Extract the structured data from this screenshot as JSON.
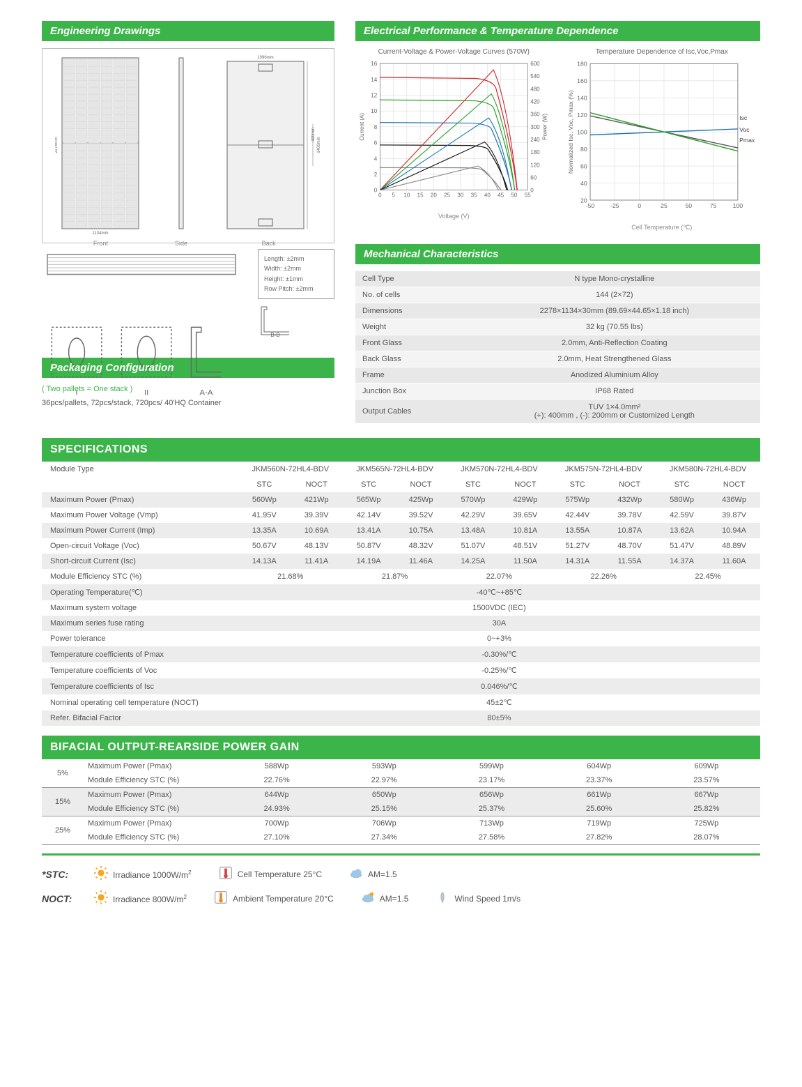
{
  "colors": {
    "brand": "#3bb54a",
    "row_alt": "#ececec",
    "text": "#555555"
  },
  "sections": {
    "engineering": "Engineering Drawings",
    "electrical": "Electrical Performance & Temperature Dependence",
    "mechanical": "Mechanical Characteristics",
    "packaging": "Packaging Configuration",
    "specs": "SPECIFICATIONS",
    "bifacial": "BIFACIAL OUTPUT-REARSIDE POWER GAIN"
  },
  "engineering_drawings": {
    "front_label": "Front",
    "side_label": "Side",
    "back_label": "Back",
    "overall_width_mm": 1134,
    "overall_height_mm": 2278,
    "back_width_mm": 1096,
    "back_inner_h_mm": 1400,
    "back_jb_offset_mm": 400,
    "section_aa": "A-A",
    "section_bb": "B-B",
    "section_I": "I",
    "section_II": "II",
    "tolerances": {
      "length": "Length: ±2mm",
      "width": "Width: ±2mm",
      "height": "Height: ±1mm",
      "row_pitch": "Row Pitch: ±2mm"
    }
  },
  "packaging": {
    "note": "( Two pallets = One stack )",
    "text": "36pcs/pallets, 72pcs/stack, 720pcs/ 40'HQ Container"
  },
  "charts": {
    "iv": {
      "title": "Current-Voltage & Power-Voltage Curves (570W)",
      "x_label": "Voltage (V)",
      "y_left_label": "Current (A)",
      "y_right_label": "Power (W)",
      "x_ticks": [
        0,
        5,
        10,
        15,
        20,
        25,
        30,
        35,
        40,
        45,
        50,
        55
      ],
      "y_left_ticks": [
        0,
        2,
        4,
        6,
        8,
        10,
        12,
        14,
        16
      ],
      "y_right_ticks": [
        0,
        60,
        120,
        180,
        240,
        300,
        360,
        420,
        480,
        540,
        600
      ],
      "xlim": [
        0,
        55
      ],
      "ylim_left": [
        0,
        16
      ],
      "ylim_right": [
        0,
        600
      ],
      "grid_color": "#cccccc",
      "axis_color": "#555555",
      "font_size_axis": 8,
      "iv_curves": [
        {
          "irradiance": 1000,
          "color": "#d62728",
          "isc": 14.25,
          "voc": 51.07
        },
        {
          "irradiance": 800,
          "color": "#2ca02c",
          "isc": 11.4,
          "voc": 50.2
        },
        {
          "irradiance": 600,
          "color": "#1f77b4",
          "isc": 8.55,
          "voc": 49.1
        },
        {
          "irradiance": 400,
          "color": "#111111",
          "isc": 5.7,
          "voc": 47.6
        },
        {
          "irradiance": 200,
          "color": "#888888",
          "isc": 2.85,
          "voc": 45.0
        }
      ],
      "pv_curves": [
        {
          "irradiance": 1000,
          "color": "#d62728",
          "pmax": 570,
          "vmp": 42.29
        },
        {
          "irradiance": 800,
          "color": "#2ca02c",
          "pmax": 456,
          "vmp": 41.5
        },
        {
          "irradiance": 600,
          "color": "#1f77b4",
          "pmax": 342,
          "vmp": 40.5
        },
        {
          "irradiance": 400,
          "color": "#111111",
          "pmax": 228,
          "vmp": 39.0
        },
        {
          "irradiance": 200,
          "color": "#888888",
          "pmax": 114,
          "vmp": 36.5
        }
      ]
    },
    "temp": {
      "title": "Temperature Dependence of Isc,Voc,Pmax",
      "x_label": "Cell Temperature (℃)",
      "y_label": "Normalized Isc, Voc, Pmax (%)",
      "x_ticks": [
        -50,
        -25,
        0,
        25,
        50,
        75,
        100
      ],
      "y_ticks": [
        20,
        40,
        60,
        80,
        100,
        120,
        140,
        160,
        180
      ],
      "xlim": [
        -50,
        100
      ],
      "ylim": [
        20,
        180
      ],
      "grid_color": "#cccccc",
      "axis_color": "#555555",
      "font_size_axis": 8,
      "series": [
        {
          "name": "Isc",
          "color": "#1f77b4",
          "p1": [
            -50,
            96.5
          ],
          "p2": [
            100,
            103.5
          ]
        },
        {
          "name": "Voc",
          "color": "#555555",
          "p1": [
            -50,
            118.8
          ],
          "p2": [
            100,
            81.3
          ]
        },
        {
          "name": "Pmax",
          "color": "#2ca02c",
          "p1": [
            -50,
            122.5
          ],
          "p2": [
            100,
            77.5
          ]
        }
      ]
    }
  },
  "mechanical": {
    "rows": [
      [
        "Cell  Type",
        "N type Mono-crystalline"
      ],
      [
        "No. of cells",
        "144 (2×72)"
      ],
      [
        "Dimensions",
        "2278×1134×30mm (89.69×44.65×1.18 inch)"
      ],
      [
        "Weight",
        "32 kg (70.55 lbs)"
      ],
      [
        "Front Glass",
        "2.0mm, Anti-Reflection Coating"
      ],
      [
        "Back Glass",
        "2.0mm, Heat Strengthened Glass"
      ],
      [
        "Frame",
        "Anodized Aluminium Alloy"
      ],
      [
        "Junction Box",
        "IP68 Rated"
      ],
      [
        "Output Cables",
        "TUV  1×4.0mm²\n(+): 400mm , (-): 200mm or Customized Length"
      ]
    ]
  },
  "specifications": {
    "module_type_label": "Module Type",
    "models": [
      "JKM560N-72HL4-BDV",
      "JKM565N-72HL4-BDV",
      "JKM570N-72HL4-BDV",
      "JKM575N-72HL4-BDV",
      "JKM580N-72HL4-BDV"
    ],
    "cond_labels": [
      "STC",
      "NOCT"
    ],
    "param_rows": [
      {
        "label": "Maximum Power (Pmax)",
        "vals": [
          [
            "560Wp",
            "421Wp"
          ],
          [
            "565Wp",
            "425Wp"
          ],
          [
            "570Wp",
            "429Wp"
          ],
          [
            "575Wp",
            "432Wp"
          ],
          [
            "580Wp",
            "436Wp"
          ]
        ],
        "alt": true
      },
      {
        "label": "Maximum Power Voltage (Vmp)",
        "vals": [
          [
            "41.95V",
            "39.39V"
          ],
          [
            "42.14V",
            "39.52V"
          ],
          [
            "42.29V",
            "39.65V"
          ],
          [
            "42.44V",
            "39.78V"
          ],
          [
            "42.59V",
            "39.87V"
          ]
        ],
        "alt": false
      },
      {
        "label": "Maximum Power Current (Imp)",
        "vals": [
          [
            "13.35A",
            "10.69A"
          ],
          [
            "13.41A",
            "10.75A"
          ],
          [
            "13.48A",
            "10.81A"
          ],
          [
            "13.55A",
            "10.87A"
          ],
          [
            "13.62A",
            "10.94A"
          ]
        ],
        "alt": true
      },
      {
        "label": "Open-circuit Voltage (Voc)",
        "vals": [
          [
            "50.67V",
            "48.13V"
          ],
          [
            "50.87V",
            "48.32V"
          ],
          [
            "51.07V",
            "48.51V"
          ],
          [
            "51.27V",
            "48.70V"
          ],
          [
            "51.47V",
            "48.89V"
          ]
        ],
        "alt": false
      },
      {
        "label": "Short-circuit Current (Isc)",
        "vals": [
          [
            "14.13A",
            "11.41A"
          ],
          [
            "14.19A",
            "11.46A"
          ],
          [
            "14.25A",
            "11.50A"
          ],
          [
            "14.31A",
            "11.55A"
          ],
          [
            "14.37A",
            "11.60A"
          ]
        ],
        "alt": true
      }
    ],
    "eff_row": {
      "label": "Module Efficiency STC (%)",
      "vals": [
        "21.68%",
        "21.87%",
        "22.07%",
        "22.26%",
        "22.45%"
      ],
      "alt": false
    },
    "full_rows": [
      {
        "label": "Operating Temperature(℃)",
        "val": "-40℃~+85℃",
        "alt": true
      },
      {
        "label": "Maximum system voltage",
        "val": "1500VDC (IEC)",
        "alt": false
      },
      {
        "label": "Maximum series fuse rating",
        "val": "30A",
        "alt": true
      },
      {
        "label": "Power tolerance",
        "val": "0~+3%",
        "alt": false
      },
      {
        "label": "Temperature coefficients of Pmax",
        "val": "-0.30%/℃",
        "alt": true
      },
      {
        "label": "Temperature coefficients of Voc",
        "val": "-0.25%/℃",
        "alt": false
      },
      {
        "label": "Temperature coefficients of Isc",
        "val": "0.046%/℃",
        "alt": true
      },
      {
        "label": "Nominal operating cell temperature  (NOCT)",
        "val": "45±2℃",
        "alt": false
      },
      {
        "label": "Refer. Bifacial Factor",
        "val": "80±5%",
        "alt": true
      }
    ]
  },
  "bifacial": {
    "groups": [
      {
        "pct": "5%",
        "alt": false,
        "rows": [
          {
            "label": "Maximum Power (Pmax)",
            "vals": [
              "588Wp",
              "593Wp",
              "599Wp",
              "604Wp",
              "609Wp"
            ]
          },
          {
            "label": "Module Efficiency STC (%)",
            "vals": [
              "22.76%",
              "22.97%",
              "23.17%",
              "23.37%",
              "23.57%"
            ]
          }
        ]
      },
      {
        "pct": "15%",
        "alt": true,
        "rows": [
          {
            "label": "Maximum Power (Pmax)",
            "vals": [
              "644Wp",
              "650Wp",
              "656Wp",
              "661Wp",
              "667Wp"
            ]
          },
          {
            "label": "Module Efficiency STC (%)",
            "vals": [
              "24.93%",
              "25.15%",
              "25.37%",
              "25.60%",
              "25.82%"
            ]
          }
        ]
      },
      {
        "pct": "25%",
        "alt": false,
        "rows": [
          {
            "label": "Maximum Power (Pmax)",
            "vals": [
              "700Wp",
              "706Wp",
              "713Wp",
              "719Wp",
              "725Wp"
            ]
          },
          {
            "label": "Module Efficiency STC (%)",
            "vals": [
              "27.10%",
              "27.34%",
              "27.58%",
              "27.82%",
              "28.07%"
            ]
          }
        ]
      }
    ]
  },
  "footer": {
    "stc_tag": "*STC:",
    "noct_tag": "NOCT:",
    "stc_items": [
      {
        "icon": "sun",
        "text": "Irradiance 1000W/m²"
      },
      {
        "icon": "thermo-red",
        "text": "Cell Temperature 25°C"
      },
      {
        "icon": "cloud",
        "text": "AM=1.5"
      }
    ],
    "noct_items": [
      {
        "icon": "sun",
        "text": "Irradiance 800W/m²"
      },
      {
        "icon": "thermo-orange",
        "text": "Ambient Temperature 20°C"
      },
      {
        "icon": "cloud-sun",
        "text": "AM=1.5"
      },
      {
        "icon": "wind",
        "text": "Wind Speed 1m/s"
      }
    ]
  }
}
